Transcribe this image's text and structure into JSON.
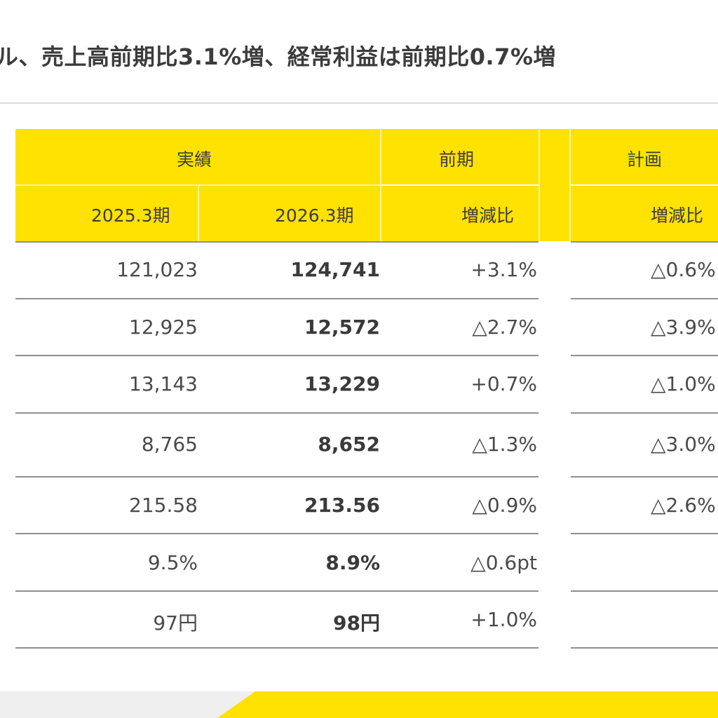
{
  "title": "ル、売上高前期比3.1%増、経常利益は前期比0.7%増",
  "header": {
    "group_actual": "実績",
    "group_prev": "前期",
    "group_plan": "計画",
    "col_2025": "2025.3期",
    "col_2026": "2026.3期",
    "col_yoy": "増減比",
    "col_plan_change": "増減比"
  },
  "rows": [
    {
      "v2025": "121,023",
      "v2026": "124,741",
      "yoy": "+3.1%",
      "plan": "△0.6%"
    },
    {
      "v2025": "12,925",
      "v2026": "12,572",
      "yoy": "△2.7%",
      "plan": "△3.9%"
    },
    {
      "v2025": "13,143",
      "v2026": "13,229",
      "yoy": "+0.7%",
      "plan": "△1.0%"
    },
    {
      "v2025": "8,765",
      "v2026": "8,652",
      "yoy": "△1.3%",
      "plan": "△3.0%"
    },
    {
      "v2025": "215.58",
      "v2026": "213.56",
      "yoy": "△0.9%",
      "plan": "△2.6%"
    },
    {
      "v2025": "9.5%",
      "v2026": "8.9%",
      "yoy": "△0.6pt",
      "plan": ""
    },
    {
      "v2025": "97円",
      "v2026": "98円",
      "yoy": "+1.0%",
      "plan": ""
    }
  ],
  "colors": {
    "accent_yellow": "#ffe200",
    "text": "#444444",
    "rule": "#8f8f8f"
  }
}
